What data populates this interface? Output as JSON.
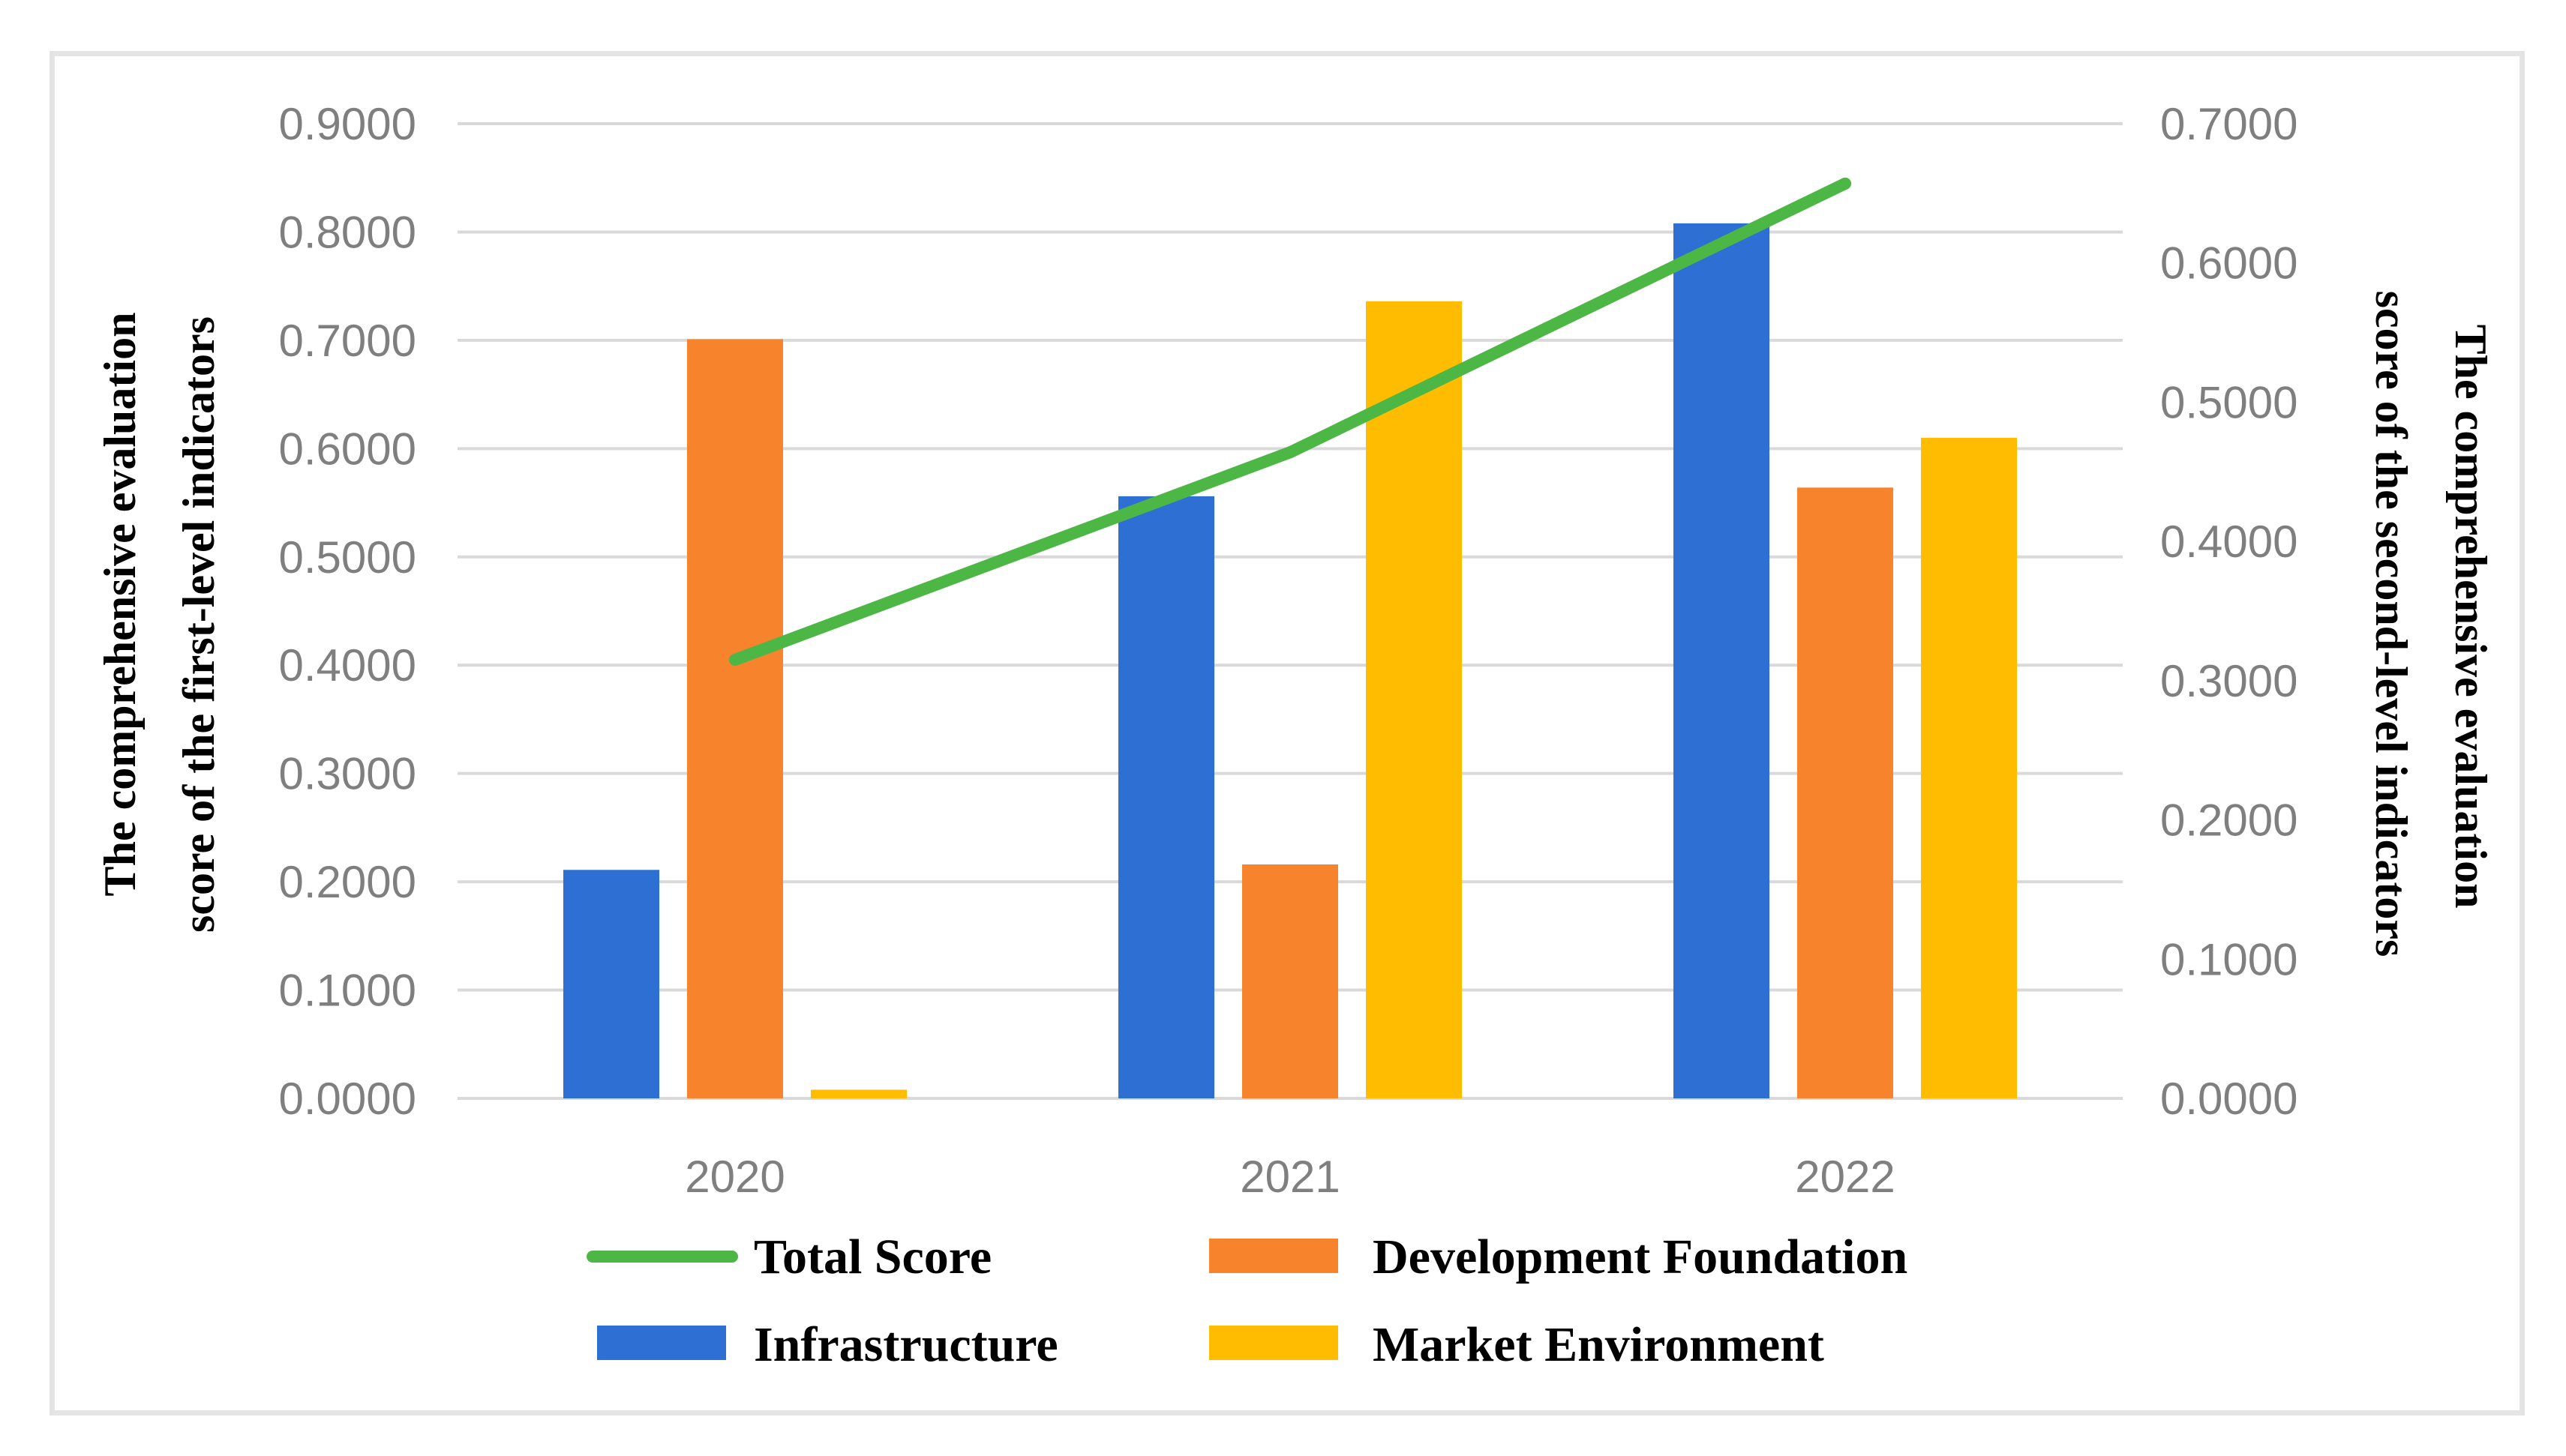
{
  "chart_data": {
    "type": "bar",
    "categories": [
      "2020",
      "2021",
      "2022"
    ],
    "series": [
      {
        "name": "Infrastructure",
        "type": "bar",
        "axis": "left",
        "color": "#2e6fd3",
        "values": [
          0.211,
          0.556,
          0.808
        ]
      },
      {
        "name": "Development Foundation",
        "type": "bar",
        "axis": "left",
        "color": "#f7842d",
        "values": [
          0.701,
          0.216,
          0.564
        ]
      },
      {
        "name": "Market Environment",
        "type": "bar",
        "axis": "left",
        "color": "#ffbc00",
        "values": [
          0.008,
          0.736,
          0.61
        ]
      },
      {
        "name": "Total Score",
        "type": "line",
        "axis": "right",
        "color": "#4db745",
        "values": [
          0.315,
          0.464,
          0.657
        ]
      }
    ],
    "y_left": {
      "label_lines": [
        "The comprehensive evaluation",
        "score of the first-level indicators"
      ],
      "range": [
        0,
        0.9
      ],
      "ticks": [
        "0.0000",
        "0.1000",
        "0.2000",
        "0.3000",
        "0.4000",
        "0.5000",
        "0.6000",
        "0.7000",
        "0.8000",
        "0.9000"
      ]
    },
    "y_right": {
      "label_lines": [
        "The comprehensive evaluation",
        "score of the second-level indicators"
      ],
      "range": [
        0,
        0.7
      ],
      "ticks": [
        "0.0000",
        "0.1000",
        "0.2000",
        "0.3000",
        "0.4000",
        "0.5000",
        "0.6000",
        "0.7000"
      ]
    },
    "grid": true,
    "legend_position": "bottom",
    "legend_order": [
      "Total Score",
      "Development Foundation",
      "Infrastructure",
      "Market Environment"
    ]
  }
}
